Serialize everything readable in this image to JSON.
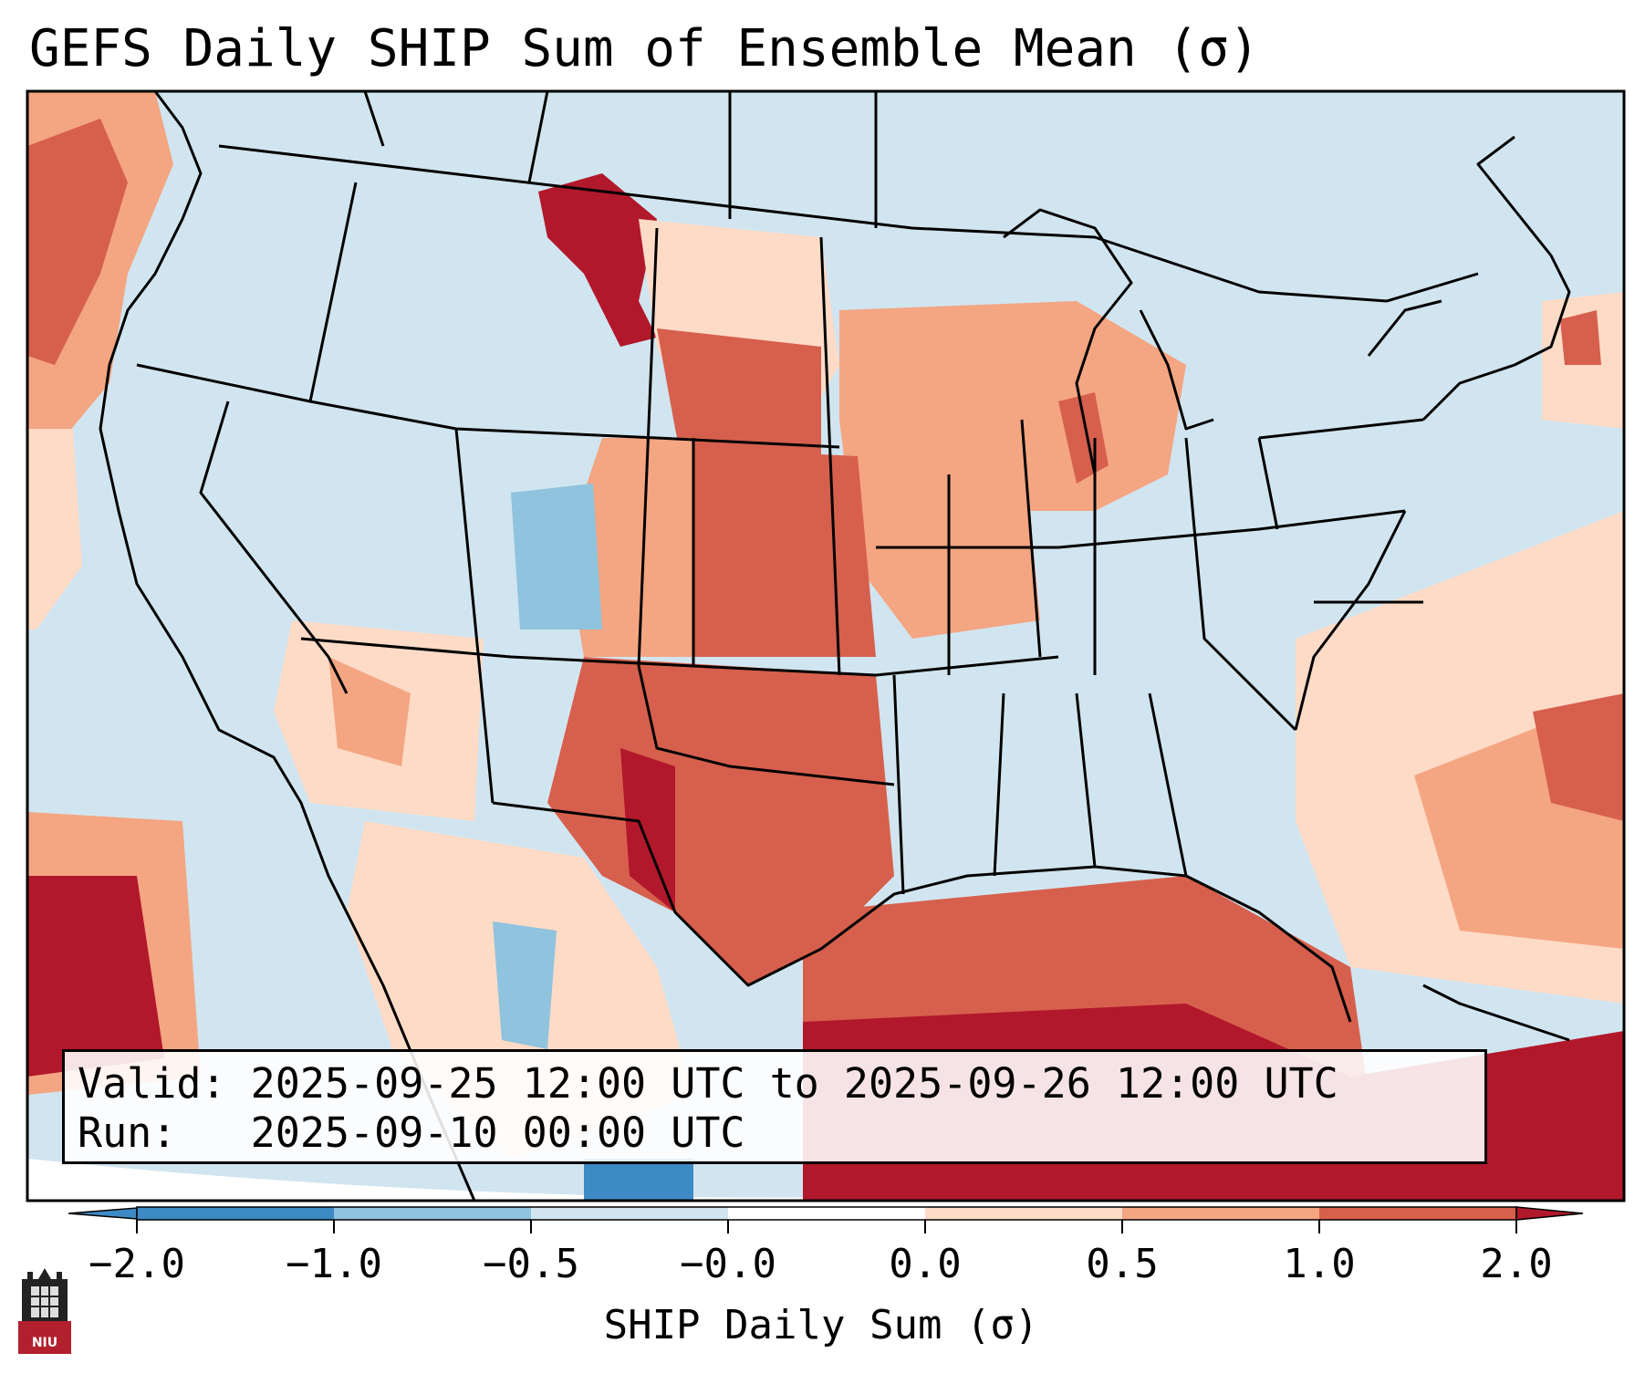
{
  "title": "GEFS Daily SHIP Sum of Ensemble Mean (σ)",
  "info": {
    "valid_label": "Valid:",
    "valid_value": "2025-09-25 12:00 UTC to 2025-09-26 12:00 UTC",
    "run_label": "Run:",
    "run_value": "2025-09-10 00:00 UTC"
  },
  "colorbar": {
    "label": "SHIP Daily Sum (σ)",
    "ticks": [
      "−2.0",
      "−1.0",
      "−0.5",
      "−0.0",
      "0.0",
      "0.5",
      "1.0",
      "2.0"
    ],
    "colors": [
      "#3d8ac4",
      "#8fc3de",
      "#d1e5f0",
      "#ffffff",
      "#fddbc7",
      "#f4a582",
      "#d6604d",
      "#b2182b"
    ],
    "extend": "both"
  },
  "logo": {
    "text": "NIU",
    "color": "#b21f2d"
  },
  "map": {
    "region": "Contiguous United States",
    "dominant_colors": {
      "negative": "#d1e5f0",
      "positive": "#fddbc7"
    }
  }
}
